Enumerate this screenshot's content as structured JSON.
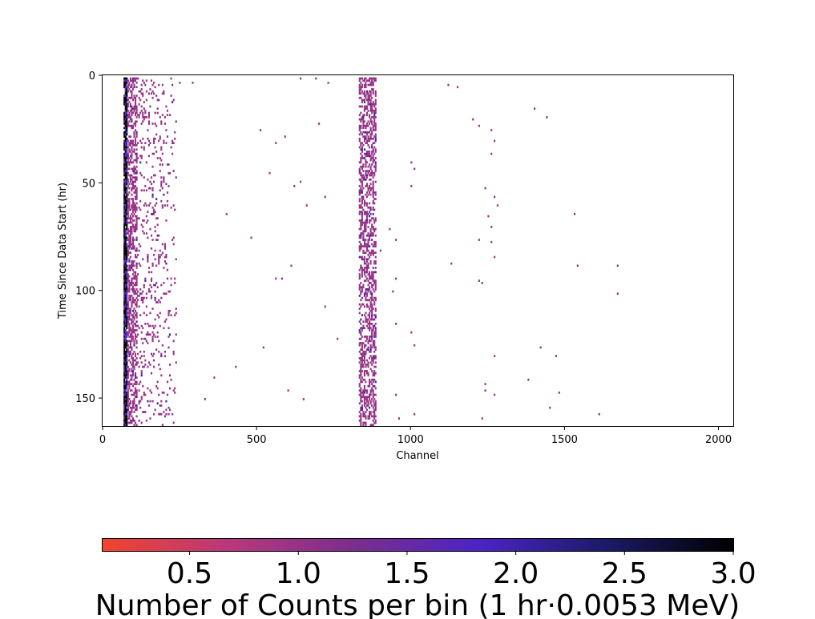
{
  "chart_data": {
    "type": "heatmap",
    "title": "",
    "xlabel": "Channel",
    "ylabel": "Time Since Data Start (hr)",
    "xlim": [
      0,
      2048
    ],
    "ylim": [
      163,
      0
    ],
    "x_ticks": [
      0,
      500,
      1000,
      1500,
      2000
    ],
    "y_ticks": [
      0,
      50,
      100,
      150
    ],
    "bin_width_channels": 8,
    "bin_height_hours": 1,
    "colormap": [
      "#f1442c",
      "#b8387c",
      "#7a2e8e",
      "#4b24c4",
      "#1c1a66",
      "#000000"
    ],
    "colorbar": {
      "label": "Number of Counts per bin (1 hr·0.0053 MeV)",
      "range": [
        0.1,
        3.0
      ],
      "ticks": [
        0.5,
        1.0,
        1.5,
        2.0,
        2.5,
        3.0
      ],
      "orientation": "horizontal",
      "placement": "bottom"
    },
    "notes_regions": [
      {
        "channel_range": [
          68,
          80
        ],
        "hours": [
          1,
          162
        ],
        "typical_count": 3
      },
      {
        "channel_range": [
          80,
          112
        ],
        "hours": [
          1,
          162
        ],
        "typical_count": 1
      },
      {
        "channel_range": [
          112,
          240
        ],
        "hours": [
          1,
          162
        ],
        "typical_count": 1
      },
      {
        "channel_range": [
          832,
          888
        ],
        "hours": [
          1,
          162
        ],
        "typical_count": 1
      }
    ],
    "isolated_counts": [
      {
        "channel": 248,
        "hour": 3,
        "count": 1
      },
      {
        "channel": 290,
        "hour": 3,
        "count": 1
      },
      {
        "channel": 640,
        "hour": 1,
        "count": 1
      },
      {
        "channel": 690,
        "hour": 1,
        "count": 1
      },
      {
        "channel": 730,
        "hour": 3,
        "count": 1
      },
      {
        "channel": 1120,
        "hour": 4,
        "count": 1
      },
      {
        "channel": 1150,
        "hour": 5,
        "count": 1
      },
      {
        "channel": 1400,
        "hour": 15,
        "count": 1
      },
      {
        "channel": 1440,
        "hour": 19,
        "count": 1
      },
      {
        "channel": 1200,
        "hour": 20,
        "count": 1
      },
      {
        "channel": 1220,
        "hour": 23,
        "count": 1
      },
      {
        "channel": 1260,
        "hour": 25,
        "count": 1
      },
      {
        "channel": 1270,
        "hour": 30,
        "count": 1
      },
      {
        "channel": 1260,
        "hour": 36,
        "count": 1
      },
      {
        "channel": 1000,
        "hour": 40,
        "count": 1
      },
      {
        "channel": 1010,
        "hour": 43,
        "count": 1
      },
      {
        "channel": 1000,
        "hour": 51,
        "count": 1
      },
      {
        "channel": 1240,
        "hour": 52,
        "count": 1
      },
      {
        "channel": 1270,
        "hour": 56,
        "count": 1
      },
      {
        "channel": 1280,
        "hour": 60,
        "count": 1
      },
      {
        "channel": 1530,
        "hour": 64,
        "count": 1
      },
      {
        "channel": 1250,
        "hour": 65,
        "count": 1
      },
      {
        "channel": 1260,
        "hour": 70,
        "count": 1
      },
      {
        "channel": 930,
        "hour": 71,
        "count": 1
      },
      {
        "channel": 950,
        "hour": 76,
        "count": 1
      },
      {
        "channel": 1220,
        "hour": 76,
        "count": 1
      },
      {
        "channel": 1260,
        "hour": 77,
        "count": 1
      },
      {
        "channel": 900,
        "hour": 81,
        "count": 1
      },
      {
        "channel": 1270,
        "hour": 84,
        "count": 1
      },
      {
        "channel": 1130,
        "hour": 87,
        "count": 1
      },
      {
        "channel": 1540,
        "hour": 88,
        "count": 1
      },
      {
        "channel": 1670,
        "hour": 88,
        "count": 1
      },
      {
        "channel": 950,
        "hour": 94,
        "count": 1
      },
      {
        "channel": 1220,
        "hour": 95,
        "count": 1
      },
      {
        "channel": 1230,
        "hour": 96,
        "count": 1
      },
      {
        "channel": 940,
        "hour": 100,
        "count": 1
      },
      {
        "channel": 1670,
        "hour": 101,
        "count": 1
      },
      {
        "channel": 950,
        "hour": 115,
        "count": 1
      },
      {
        "channel": 1000,
        "hour": 119,
        "count": 1
      },
      {
        "channel": 1010,
        "hour": 125,
        "count": 1
      },
      {
        "channel": 1420,
        "hour": 126,
        "count": 1
      },
      {
        "channel": 1270,
        "hour": 130,
        "count": 1
      },
      {
        "channel": 1470,
        "hour": 130,
        "count": 1
      },
      {
        "channel": 1380,
        "hour": 141,
        "count": 1
      },
      {
        "channel": 1240,
        "hour": 143,
        "count": 1
      },
      {
        "channel": 1240,
        "hour": 146,
        "count": 1
      },
      {
        "channel": 1270,
        "hour": 148,
        "count": 1
      },
      {
        "channel": 1480,
        "hour": 147,
        "count": 1
      },
      {
        "channel": 950,
        "hour": 148,
        "count": 1
      },
      {
        "channel": 1450,
        "hour": 154,
        "count": 1
      },
      {
        "channel": 1610,
        "hour": 157,
        "count": 1
      },
      {
        "channel": 1010,
        "hour": 157,
        "count": 1
      },
      {
        "channel": 1230,
        "hour": 159,
        "count": 1
      },
      {
        "channel": 960,
        "hour": 159,
        "count": 1
      },
      {
        "channel": 400,
        "hour": 64,
        "count": 1
      },
      {
        "channel": 540,
        "hour": 45,
        "count": 1
      },
      {
        "channel": 560,
        "hour": 31,
        "count": 1
      },
      {
        "channel": 510,
        "hour": 25,
        "count": 1
      },
      {
        "channel": 620,
        "hour": 51,
        "count": 1
      },
      {
        "channel": 640,
        "hour": 49,
        "count": 1
      },
      {
        "channel": 660,
        "hour": 60,
        "count": 1
      },
      {
        "channel": 720,
        "hour": 56,
        "count": 1
      },
      {
        "channel": 480,
        "hour": 75,
        "count": 1
      },
      {
        "channel": 610,
        "hour": 88,
        "count": 1
      },
      {
        "channel": 560,
        "hour": 94,
        "count": 1
      },
      {
        "channel": 520,
        "hour": 126,
        "count": 1
      },
      {
        "channel": 600,
        "hour": 146,
        "count": 1
      },
      {
        "channel": 650,
        "hour": 150,
        "count": 1
      },
      {
        "channel": 430,
        "hour": 135,
        "count": 1
      },
      {
        "channel": 360,
        "hour": 140,
        "count": 1
      },
      {
        "channel": 330,
        "hour": 150,
        "count": 1
      },
      {
        "channel": 700,
        "hour": 22,
        "count": 1
      },
      {
        "channel": 720,
        "hour": 107,
        "count": 1
      },
      {
        "channel": 760,
        "hour": 122,
        "count": 1
      },
      {
        "channel": 590,
        "hour": 28,
        "count": 1
      },
      {
        "channel": 580,
        "hour": 94,
        "count": 1
      }
    ]
  }
}
